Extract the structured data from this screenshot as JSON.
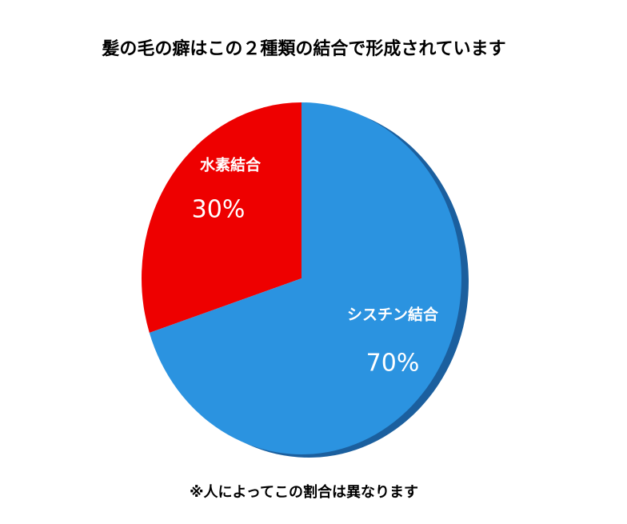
{
  "chart_data": {
    "type": "pie",
    "title": "髪の毛の癖はこの２種類の結合で形成されています",
    "categories": [
      "水素結合",
      "シスチン結合"
    ],
    "values": [
      30,
      70
    ],
    "value_labels": [
      "30%",
      "70%"
    ],
    "colors": [
      "#ee0000",
      "#2b93e0"
    ],
    "footnote": "※人によってこの割合は異なります"
  }
}
